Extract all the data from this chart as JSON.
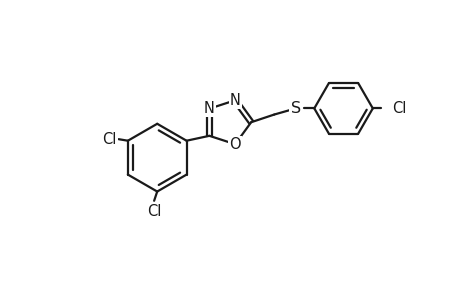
{
  "bg_color": "#ffffff",
  "bond_color": "#1a1a1a",
  "line_width": 1.6,
  "font_size": 10.5,
  "figw": 4.6,
  "figh": 3.0,
  "dpi": 100,
  "xlim": [
    0,
    4.6
  ],
  "ylim": [
    0,
    3.0
  ]
}
